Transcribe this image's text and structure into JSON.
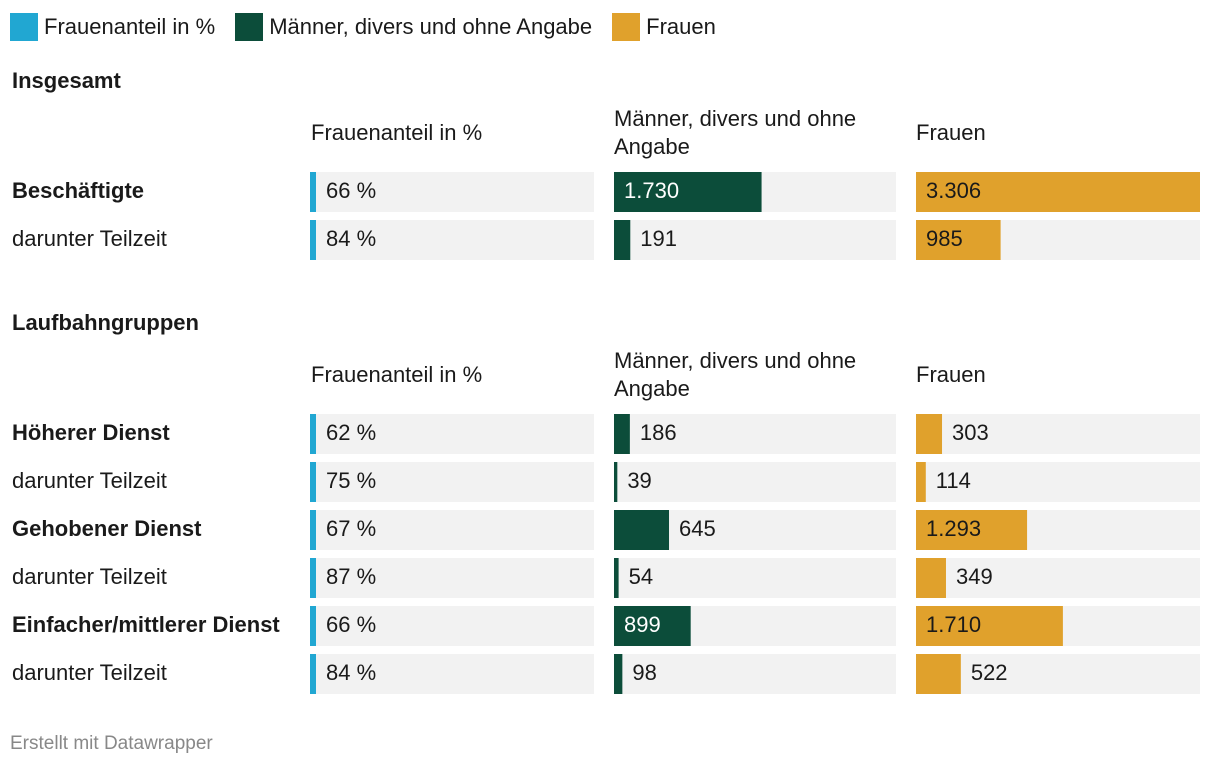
{
  "legend": [
    {
      "label": "Frauenanteil in %",
      "color": "#21a7d2"
    },
    {
      "label": "Männer, divers und ohne Angabe",
      "color": "#0c4d3a"
    },
    {
      "label": "Frauen",
      "color": "#e0a12c"
    }
  ],
  "footer": "Erstellt mit Datawrapper",
  "chart_data": {
    "type": "table",
    "columns": [
      {
        "header": "Frauenanteil in %",
        "header_lines": [
          "Frauenanteil in %"
        ],
        "color": "#21a7d2",
        "max": 100,
        "suffix": " %"
      },
      {
        "header": "Männer, divers und ohne Angabe",
        "header_lines": [
          "Männer, divers und ohne",
          "Angabe"
        ],
        "color": "#0c4d3a",
        "max": 3306,
        "suffix": ""
      },
      {
        "header": "Frauen",
        "header_lines": [
          "Frauen"
        ],
        "color": "#e0a12c",
        "max": 3306,
        "suffix": ""
      }
    ],
    "sections": [
      {
        "title": "Insgesamt",
        "rows": [
          {
            "label": "Beschäftigte",
            "bold": true,
            "values": [
              66,
              1730,
              3306
            ],
            "display": [
              "66 %",
              "1.730",
              "3.306"
            ]
          },
          {
            "label": "darunter Teilzeit",
            "bold": false,
            "values": [
              84,
              191,
              985
            ],
            "display": [
              "84 %",
              "191",
              "985"
            ]
          }
        ]
      },
      {
        "title": "Laufbahngruppen",
        "rows": [
          {
            "label": "Höherer Dienst",
            "bold": true,
            "values": [
              62,
              186,
              303
            ],
            "display": [
              "62 %",
              "186",
              "303"
            ]
          },
          {
            "label": "darunter Teilzeit",
            "bold": false,
            "values": [
              75,
              39,
              114
            ],
            "display": [
              "75 %",
              "39",
              "114"
            ]
          },
          {
            "label": "Gehobener Dienst",
            "bold": true,
            "values": [
              67,
              645,
              1293
            ],
            "display": [
              "67 %",
              "645",
              "1.293"
            ]
          },
          {
            "label": "darunter Teilzeit",
            "bold": false,
            "values": [
              87,
              54,
              349
            ],
            "display": [
              "87 %",
              "54",
              "349"
            ]
          },
          {
            "label": "Einfacher/mittlerer Dienst",
            "bold": true,
            "values": [
              66,
              899,
              1710
            ],
            "display": [
              "66 %",
              "899",
              "1.710"
            ]
          },
          {
            "label": "darunter Teilzeit",
            "bold": false,
            "values": [
              84,
              98,
              522
            ],
            "display": [
              "84 %",
              "98",
              "522"
            ]
          }
        ]
      }
    ]
  }
}
